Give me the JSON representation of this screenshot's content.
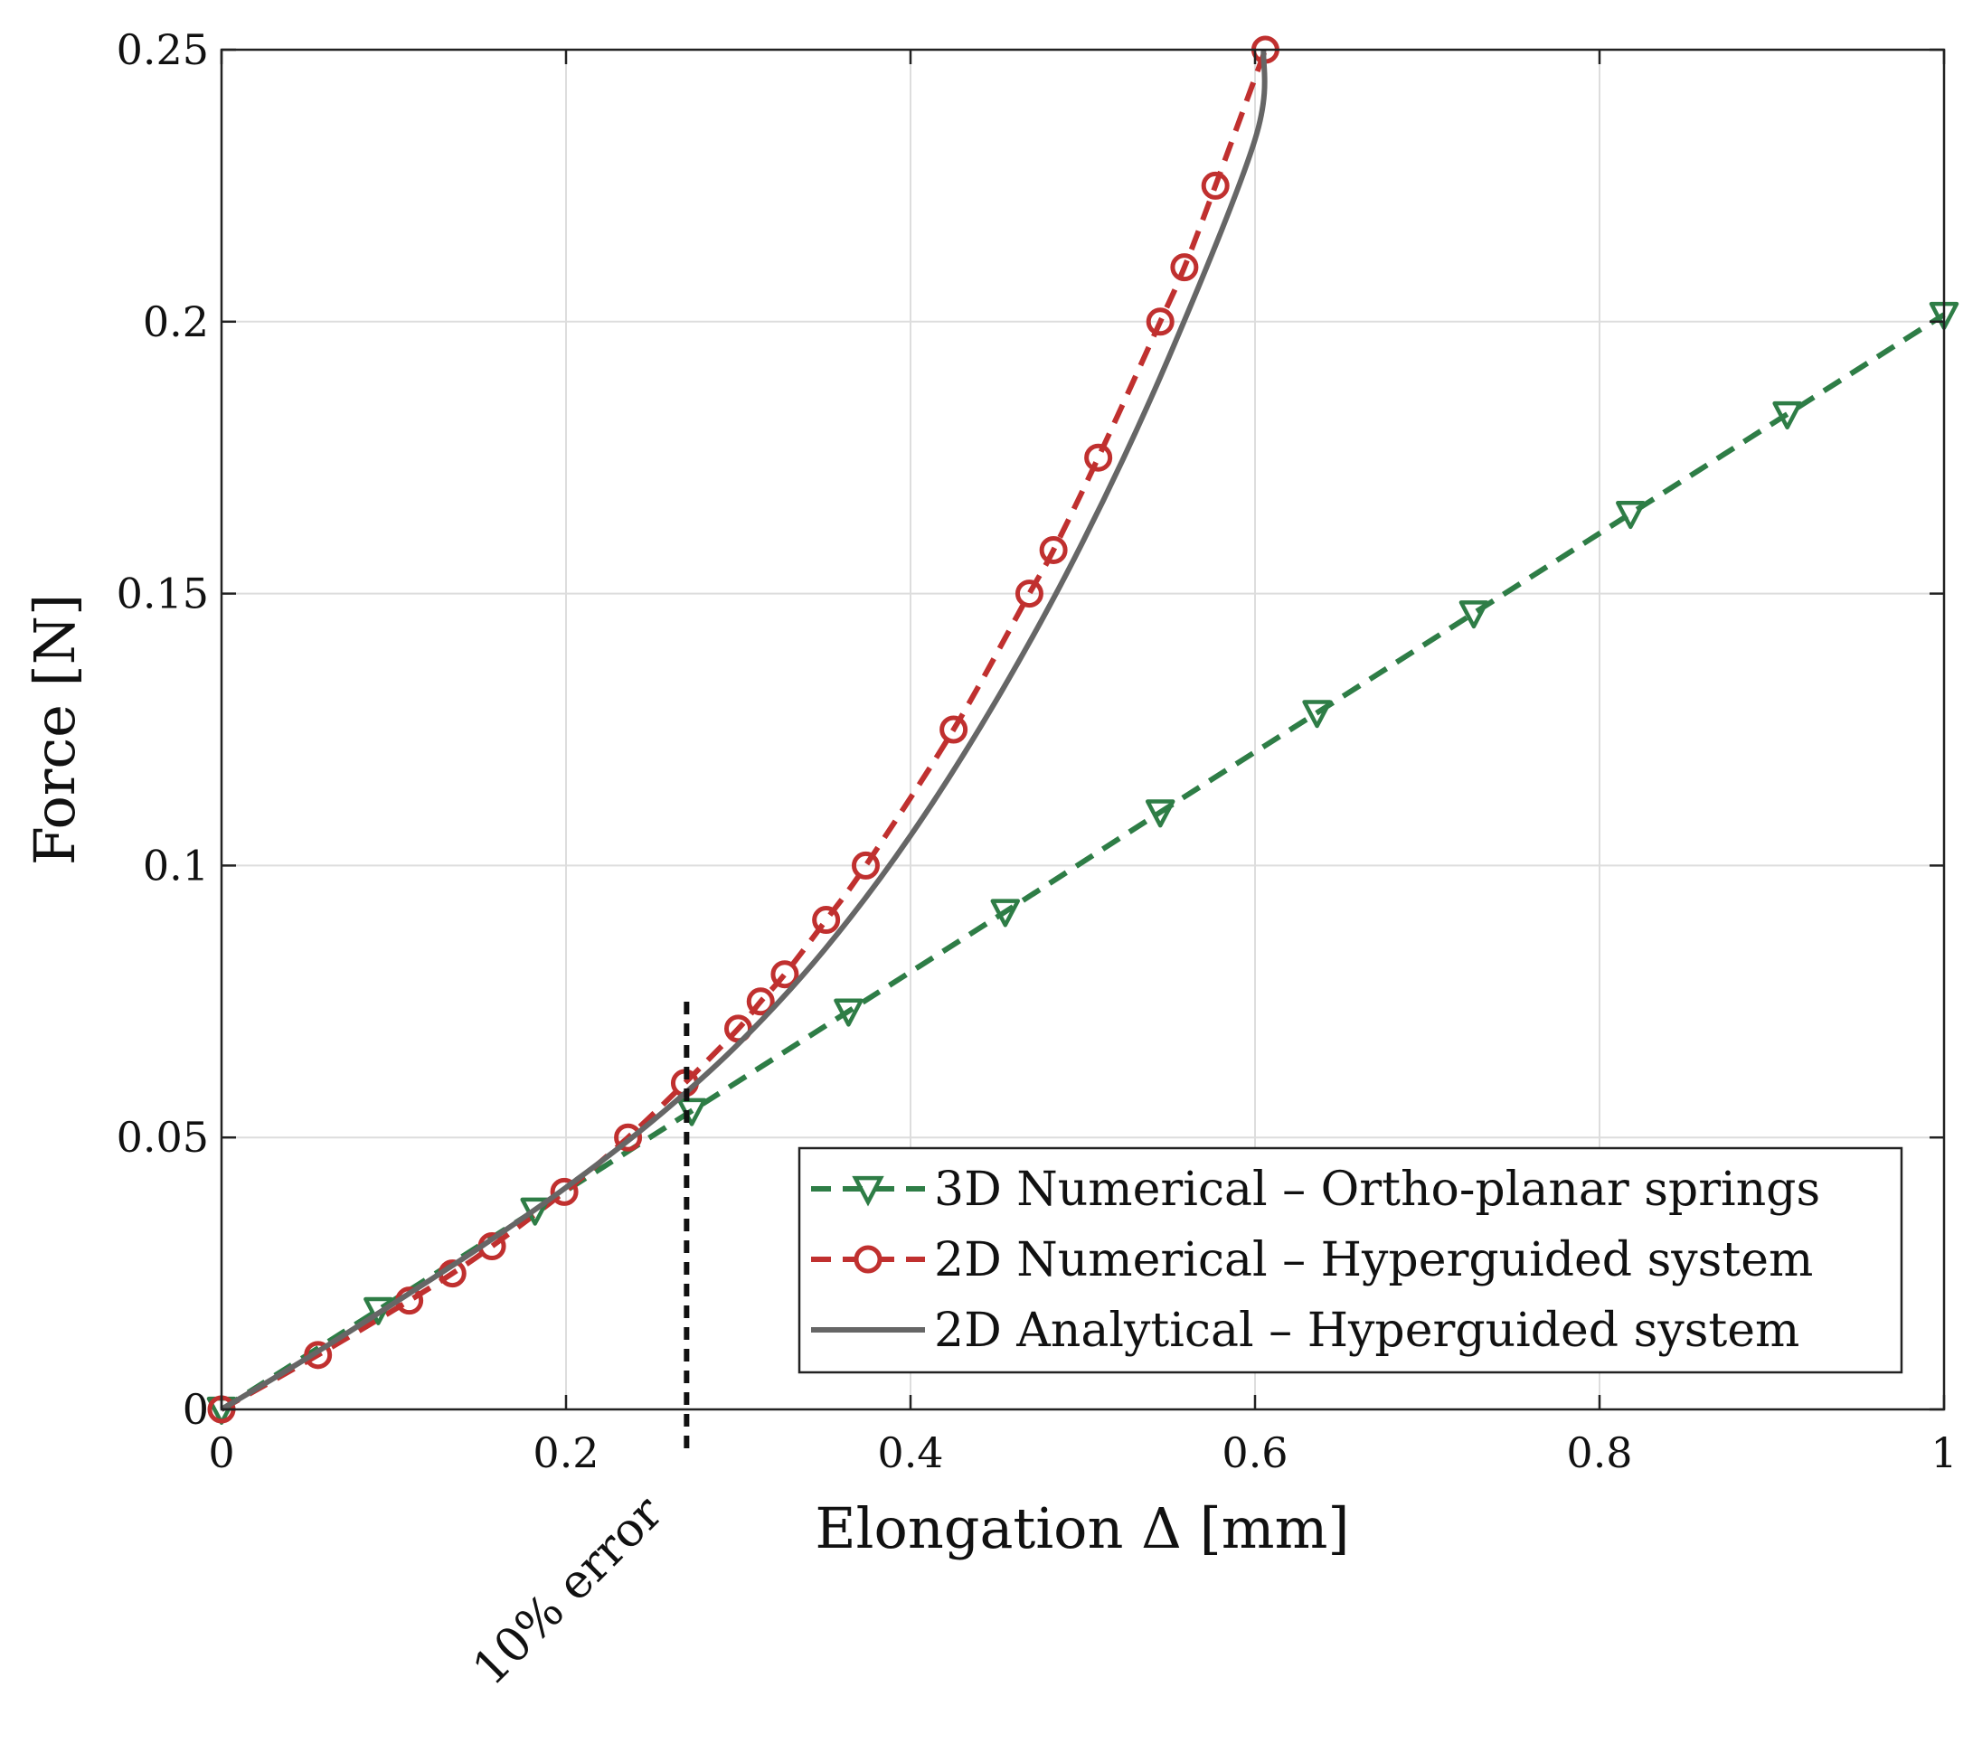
{
  "chart_data": {
    "type": "line",
    "xlabel": "Elongation Δ [mm]",
    "ylabel": "Force [N]",
    "xlim": [
      0,
      1
    ],
    "ylim": [
      0,
      0.25
    ],
    "xticks": [
      0,
      0.2,
      0.4,
      0.6,
      0.8,
      1
    ],
    "xtick_labels": [
      "0",
      "0.2",
      "0.4",
      "0.6",
      "0.8",
      "1"
    ],
    "yticks": [
      0,
      0.05,
      0.1,
      0.15,
      0.2,
      0.25
    ],
    "ytick_labels": [
      "0",
      "0.05",
      "0.1",
      "0.15",
      "0.2",
      "0.25"
    ],
    "grid": true,
    "legend_position": "bottom-right",
    "series": [
      {
        "name": "3D Numerical – Ortho-planar springs",
        "style": "dashed",
        "marker": "triangle-down",
        "color": "#2e7d46",
        "x": [
          0,
          0.091,
          0.182,
          0.273,
          0.364,
          0.455,
          0.545,
          0.636,
          0.727,
          0.818,
          0.909,
          1.0
        ],
        "y": [
          0,
          0.0183,
          0.0366,
          0.0549,
          0.0732,
          0.0915,
          0.1098,
          0.1281,
          0.1464,
          0.1647,
          0.183,
          0.2013
        ]
      },
      {
        "name": "2D Numerical – Hyperguided system",
        "style": "dashed",
        "marker": "circle",
        "color": "#c0302f",
        "x": [
          0,
          0.056,
          0.109,
          0.134,
          0.157,
          0.199,
          0.236,
          0.269,
          0.3,
          0.313,
          0.327,
          0.351,
          0.374,
          0.425,
          0.469,
          0.483,
          0.509,
          0.545,
          0.559,
          0.577,
          0.606
        ],
        "y": [
          0,
          0.01,
          0.02,
          0.025,
          0.03,
          0.04,
          0.05,
          0.06,
          0.07,
          0.075,
          0.08,
          0.09,
          0.1,
          0.125,
          0.15,
          0.158,
          0.175,
          0.2,
          0.21,
          0.225,
          0.25
        ]
      },
      {
        "name": "2D Analytical – Hyperguided system",
        "style": "solid",
        "marker": "none",
        "color": "#666666",
        "x": [
          0,
          0.05,
          0.1,
          0.15,
          0.2,
          0.25,
          0.3,
          0.35,
          0.4,
          0.45,
          0.5,
          0.55,
          0.6,
          0.605
        ],
        "y": [
          0,
          0.0095,
          0.0195,
          0.0298,
          0.0408,
          0.053,
          0.0672,
          0.0845,
          0.1055,
          0.1305,
          0.1595,
          0.1935,
          0.2335,
          0.25
        ]
      }
    ],
    "annotations": [
      {
        "text": "10% error",
        "x": 0.27,
        "style": "vertical-dotted-line"
      }
    ]
  }
}
